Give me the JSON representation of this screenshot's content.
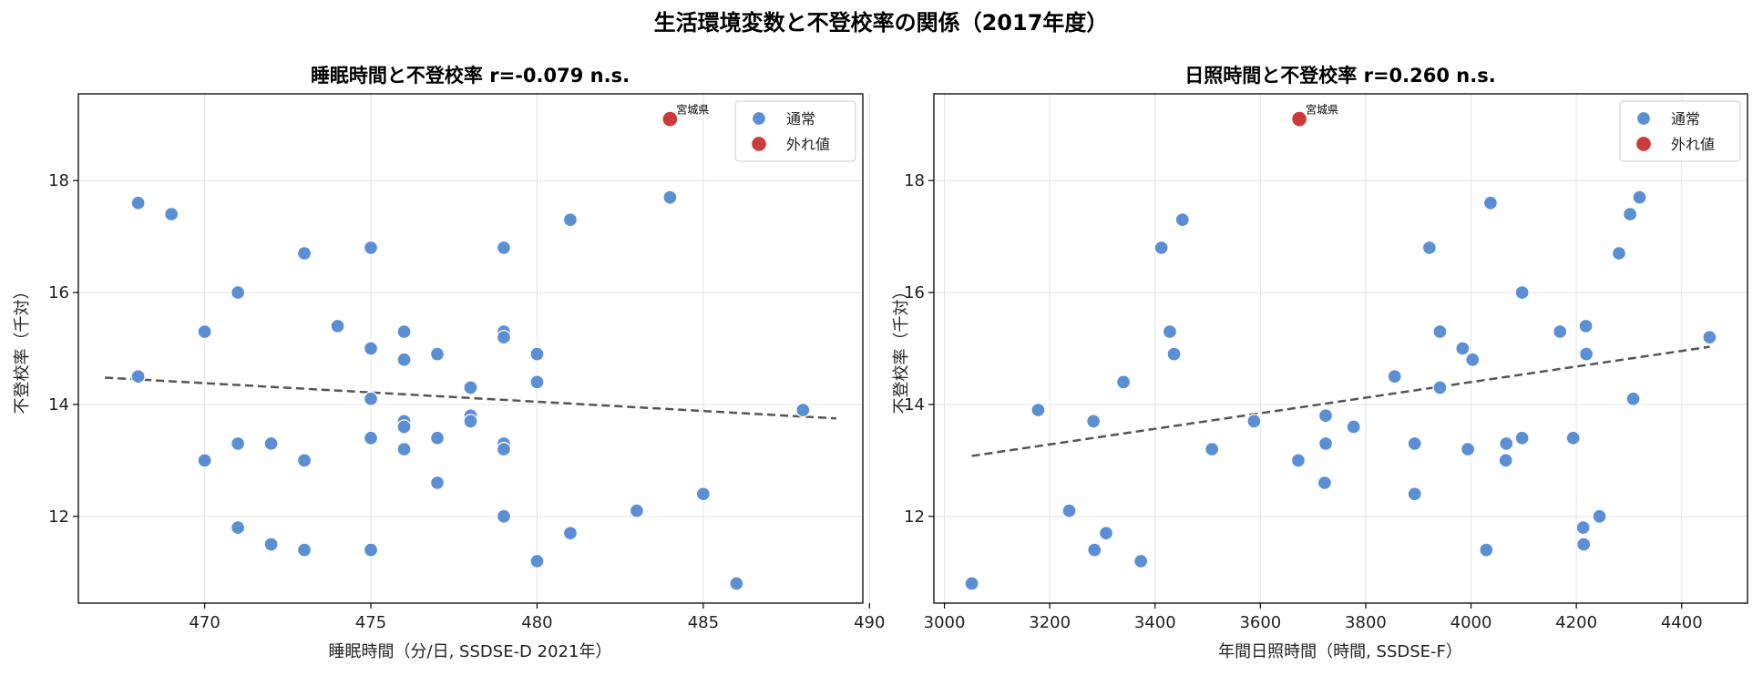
{
  "figure": {
    "suptitle": "生活環境変数と不登校率の関係（2017年度）"
  },
  "colors": {
    "normal": "#5b8fd4",
    "outlier": "#cc3b3b",
    "trend": "#555555",
    "grid": "#e3e3e3",
    "axis": "#000000"
  },
  "legend": {
    "normal_label": "通常",
    "outlier_label": "外れ値",
    "position": "upper right"
  },
  "chart_data": [
    {
      "type": "scatter",
      "title": "睡眠時間と不登校率  r=-0.079 n.s.",
      "xlabel": "睡眠時間（分/日, SSDSE-D 2021年）",
      "ylabel": "不登校率（千対）",
      "xlim": [
        466.2,
        489.8
      ],
      "ylim": [
        10.45,
        19.55
      ],
      "xticks": [
        470,
        475,
        480,
        485,
        490
      ],
      "yticks": [
        12,
        14,
        16,
        18
      ],
      "grid": true,
      "legend_position": "upper right",
      "series": [
        {
          "name": "通常",
          "points": [
            [
              468,
              17.6
            ],
            [
              469,
              17.4
            ],
            [
              468,
              14.5
            ],
            [
              470,
              15.3
            ],
            [
              470,
              13.0
            ],
            [
              471,
              16.0
            ],
            [
              471,
              13.3
            ],
            [
              471,
              11.8
            ],
            [
              472,
              13.3
            ],
            [
              472,
              11.5
            ],
            [
              473,
              16.7
            ],
            [
              473,
              13.0
            ],
            [
              473,
              11.4
            ],
            [
              474,
              15.4
            ],
            [
              475,
              16.8
            ],
            [
              475,
              15.0
            ],
            [
              475,
              14.1
            ],
            [
              475,
              13.4
            ],
            [
              475,
              11.4
            ],
            [
              476,
              15.3
            ],
            [
              476,
              14.8
            ],
            [
              476,
              13.7
            ],
            [
              476,
              13.6
            ],
            [
              476,
              13.2
            ],
            [
              477,
              14.9
            ],
            [
              477,
              13.4
            ],
            [
              477,
              12.6
            ],
            [
              478,
              14.3
            ],
            [
              478,
              13.8
            ],
            [
              478,
              13.7
            ],
            [
              479,
              16.8
            ],
            [
              479,
              15.3
            ],
            [
              479,
              15.2
            ],
            [
              479,
              13.3
            ],
            [
              479,
              13.2
            ],
            [
              479,
              12.0
            ],
            [
              480,
              14.9
            ],
            [
              480,
              14.4
            ],
            [
              480,
              11.2
            ],
            [
              481,
              17.3
            ],
            [
              481,
              11.7
            ],
            [
              483,
              12.1
            ],
            [
              484,
              17.7
            ],
            [
              485,
              12.4
            ],
            [
              486,
              10.8
            ],
            [
              488,
              13.9
            ]
          ]
        },
        {
          "name": "外れ値",
          "points": [
            [
              484,
              19.1
            ]
          ],
          "labels": [
            "宮城県"
          ]
        }
      ],
      "trend_line": {
        "x": [
          467,
          489
        ],
        "y": [
          14.48,
          13.75
        ]
      }
    },
    {
      "type": "scatter",
      "title": "日照時間と不登校率  r=0.260 n.s.",
      "xlabel": "年間日照時間（時間, SSDSE-F）",
      "ylabel": "不登校率（千対）",
      "xlim": [
        2980,
        4525
      ],
      "ylim": [
        10.45,
        19.55
      ],
      "xticks": [
        3000,
        3200,
        3400,
        3600,
        3800,
        4000,
        4200,
        4400
      ],
      "yticks": [
        12,
        14,
        16,
        18
      ],
      "grid": true,
      "legend_position": "upper right",
      "series": [
        {
          "name": "通常",
          "points": [
            [
              3052,
              10.8
            ],
            [
              3178,
              13.9
            ],
            [
              3237,
              12.1
            ],
            [
              3283,
              13.7
            ],
            [
              3285,
              11.4
            ],
            [
              3307,
              11.7
            ],
            [
              3340,
              14.4
            ],
            [
              3373,
              11.2
            ],
            [
              3412,
              16.8
            ],
            [
              3428,
              15.3
            ],
            [
              3436,
              14.9
            ],
            [
              3452,
              17.3
            ],
            [
              3508,
              13.2
            ],
            [
              3588,
              13.7
            ],
            [
              3672,
              13.0
            ],
            [
              3724,
              13.8
            ],
            [
              3724,
              13.3
            ],
            [
              3722,
              12.6
            ],
            [
              3777,
              13.6
            ],
            [
              3855,
              14.5
            ],
            [
              3893,
              13.3
            ],
            [
              3893,
              12.4
            ],
            [
              3921,
              16.8
            ],
            [
              3941,
              15.3
            ],
            [
              3941,
              14.3
            ],
            [
              3984,
              15.0
            ],
            [
              3994,
              13.2
            ],
            [
              4003,
              14.8
            ],
            [
              4029,
              11.4
            ],
            [
              4037,
              17.6
            ],
            [
              4067,
              13.3
            ],
            [
              4066,
              13.0
            ],
            [
              4097,
              16.0
            ],
            [
              4097,
              13.4
            ],
            [
              4169,
              15.3
            ],
            [
              4194,
              13.4
            ],
            [
              4213,
              11.8
            ],
            [
              4214,
              11.5
            ],
            [
              4218,
              15.4
            ],
            [
              4219,
              14.9
            ],
            [
              4244,
              12.0
            ],
            [
              4281,
              16.7
            ],
            [
              4302,
              17.4
            ],
            [
              4308,
              14.1
            ],
            [
              4320,
              17.7
            ],
            [
              4453,
              15.2
            ]
          ]
        },
        {
          "name": "外れ値",
          "points": [
            [
              3674,
              19.1
            ]
          ],
          "labels": [
            "宮城県"
          ]
        }
      ],
      "trend_line": {
        "x": [
          3052,
          4453
        ],
        "y": [
          13.08,
          15.03
        ]
      }
    }
  ]
}
